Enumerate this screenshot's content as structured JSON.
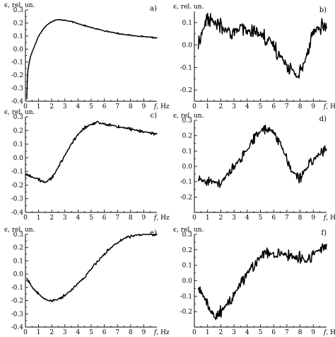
{
  "chart_data": [
    {
      "type": "line",
      "panel_label": "a)",
      "ylabel": "ϵ, rel. un.",
      "xlabel_symbol": "f",
      "xlabel_unit": ", Hz",
      "xlim": [
        0,
        10
      ],
      "ylim": [
        -0.4,
        0.3
      ],
      "xticks": [
        0,
        1,
        2,
        3,
        4,
        5,
        6,
        7,
        8,
        9
      ],
      "yticks": [
        -0.4,
        -0.3,
        -0.2,
        -0.1,
        0.0,
        0.1,
        0.2,
        0.3
      ],
      "series": [
        {
          "noise_amp": 0.003,
          "x": [
            0.1,
            0.15,
            0.2,
            0.3,
            0.4,
            0.6,
            0.8,
            1.0,
            1.2,
            1.4,
            1.6,
            1.8,
            2.0,
            2.2,
            2.5,
            2.8,
            3.0,
            3.5,
            4.0,
            4.5,
            5.0,
            6.0,
            7.0,
            8.0,
            9.0,
            10.0
          ],
          "y": [
            -0.38,
            -0.22,
            -0.15,
            -0.1,
            -0.05,
            0.0,
            0.05,
            0.1,
            0.13,
            0.16,
            0.18,
            0.2,
            0.21,
            0.22,
            0.225,
            0.225,
            0.22,
            0.21,
            0.195,
            0.18,
            0.165,
            0.14,
            0.12,
            0.105,
            0.095,
            0.085
          ]
        }
      ]
    },
    {
      "type": "line",
      "panel_label": "b)",
      "ylabel": "ϵ, rel. un.",
      "xlabel_symbol": "f",
      "xlabel_unit": ", Hz",
      "xlim": [
        0,
        10
      ],
      "ylim": [
        -0.25,
        0.15
      ],
      "xticks": [
        0,
        1,
        2,
        3,
        4,
        5,
        6,
        7,
        8,
        9
      ],
      "yticks": [
        -0.2,
        -0.1,
        0.0,
        0.1
      ],
      "series": [
        {
          "noise_amp": 0.025,
          "x": [
            0.3,
            0.6,
            1.0,
            1.5,
            2.0,
            2.5,
            3.0,
            3.5,
            4.0,
            4.5,
            5.0,
            5.5,
            6.0,
            6.5,
            7.0,
            7.5,
            7.8,
            8.2,
            8.6,
            9.0,
            9.5,
            10.0
          ],
          "y": [
            0.0,
            0.06,
            0.12,
            0.1,
            0.08,
            0.06,
            0.06,
            0.07,
            0.06,
            0.06,
            0.05,
            0.03,
            0.0,
            -0.05,
            -0.08,
            -0.12,
            -0.14,
            -0.1,
            -0.02,
            0.06,
            0.08,
            0.08
          ]
        }
      ]
    },
    {
      "type": "line",
      "panel_label": "c)",
      "ylabel": "ϵ, rel. un.",
      "xlabel_symbol": "f",
      "xlabel_unit": ", Hz",
      "xlim": [
        0,
        10
      ],
      "ylim": [
        -0.4,
        0.3
      ],
      "xticks": [
        0,
        1,
        2,
        3,
        4,
        5,
        6,
        7,
        8,
        9
      ],
      "yticks": [
        -0.4,
        -0.3,
        -0.2,
        -0.1,
        0.0,
        0.1,
        0.2,
        0.3
      ],
      "series": [
        {
          "noise_amp": 0.008,
          "x": [
            0.0,
            0.5,
            1.0,
            1.5,
            2.0,
            2.5,
            3.0,
            3.5,
            4.0,
            4.5,
            5.0,
            5.5,
            6.0,
            6.5,
            7.0,
            7.5,
            8.0,
            8.5,
            9.0,
            9.5,
            10.0
          ],
          "y": [
            -0.12,
            -0.14,
            -0.16,
            -0.18,
            -0.15,
            -0.07,
            0.02,
            0.1,
            0.17,
            0.22,
            0.245,
            0.255,
            0.25,
            0.24,
            0.23,
            0.22,
            0.21,
            0.2,
            0.19,
            0.18,
            0.175
          ]
        }
      ]
    },
    {
      "type": "line",
      "panel_label": "d)",
      "ylabel": "ϵ, rel. un.",
      "xlabel_symbol": "f",
      "xlabel_unit": ", Hz",
      "xlim": [
        0,
        10
      ],
      "ylim": [
        -0.3,
        0.3
      ],
      "xticks": [
        0,
        1,
        2,
        3,
        4,
        5,
        6,
        7,
        8,
        9
      ],
      "yticks": [
        -0.2,
        -0.1,
        0.0,
        0.1,
        0.2,
        0.3
      ],
      "series": [
        {
          "noise_amp": 0.022,
          "x": [
            0.3,
            0.7,
            1.0,
            1.5,
            2.0,
            2.5,
            3.0,
            3.5,
            4.0,
            4.5,
            5.0,
            5.5,
            6.0,
            6.5,
            7.0,
            7.3,
            7.6,
            8.0,
            8.4,
            8.8,
            9.2,
            9.6,
            10.0
          ],
          "y": [
            -0.08,
            -0.1,
            -0.1,
            -0.1,
            -0.12,
            -0.05,
            0.0,
            0.05,
            0.1,
            0.18,
            0.23,
            0.25,
            0.22,
            0.15,
            0.05,
            -0.02,
            -0.05,
            -0.08,
            -0.02,
            0.03,
            0.06,
            0.09,
            0.12
          ]
        }
      ]
    },
    {
      "type": "line",
      "panel_label": "e)",
      "ylabel": "ϵ, rel. un.",
      "xlabel_symbol": "f",
      "xlabel_unit": ", Hz",
      "xlim": [
        0,
        10
      ],
      "ylim": [
        -0.4,
        0.3
      ],
      "xticks": [
        0,
        1,
        2,
        3,
        4,
        5,
        6,
        7,
        8,
        9
      ],
      "yticks": [
        -0.4,
        -0.3,
        -0.2,
        -0.1,
        0.0,
        0.1,
        0.2,
        0.3
      ],
      "series": [
        {
          "noise_amp": 0.008,
          "x": [
            0.1,
            0.5,
            1.0,
            1.5,
            2.0,
            2.5,
            3.0,
            3.5,
            4.0,
            4.5,
            5.0,
            5.5,
            6.0,
            6.5,
            7.0,
            7.5,
            8.0,
            8.5,
            9.0,
            9.5,
            10.0
          ],
          "y": [
            -0.03,
            -0.1,
            -0.15,
            -0.19,
            -0.2,
            -0.19,
            -0.16,
            -0.12,
            -0.07,
            -0.02,
            0.04,
            0.1,
            0.15,
            0.2,
            0.24,
            0.27,
            0.285,
            0.295,
            0.3,
            0.3,
            0.3
          ]
        }
      ]
    },
    {
      "type": "line",
      "panel_label": "f)",
      "ylabel": "ϵ, rel. un.",
      "xlabel_symbol": "f",
      "xlabel_unit": ", Hz",
      "xlim": [
        0,
        10
      ],
      "ylim": [
        -0.3,
        0.3
      ],
      "xticks": [
        0,
        1,
        2,
        3,
        4,
        5,
        6,
        7,
        8,
        9
      ],
      "yticks": [
        -0.2,
        -0.1,
        0.0,
        0.1,
        0.2,
        0.3
      ],
      "series": [
        {
          "noise_amp": 0.028,
          "x": [
            0.3,
            0.7,
            1.0,
            1.3,
            1.6,
            2.0,
            2.5,
            3.0,
            3.5,
            4.0,
            4.5,
            5.0,
            5.5,
            6.0,
            6.5,
            7.0,
            7.5,
            8.0,
            8.5,
            9.0,
            9.5,
            10.0
          ],
          "y": [
            -0.05,
            -0.1,
            -0.15,
            -0.2,
            -0.24,
            -0.2,
            -0.15,
            -0.1,
            -0.02,
            0.05,
            0.1,
            0.15,
            0.18,
            0.17,
            0.18,
            0.17,
            0.15,
            0.15,
            0.12,
            0.18,
            0.2,
            0.22
          ]
        }
      ]
    }
  ]
}
